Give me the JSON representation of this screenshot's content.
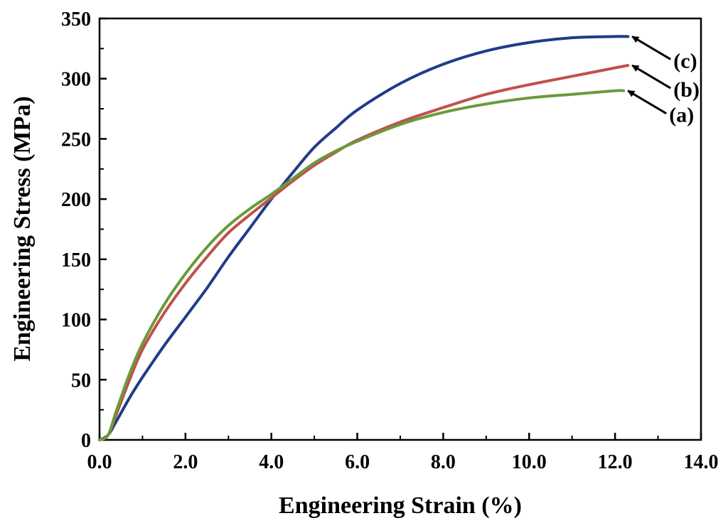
{
  "chart_data": {
    "type": "line",
    "xlabel": "Engineering Strain (%)",
    "ylabel": "Engineering Stress (MPa)",
    "xlim": [
      0,
      14
    ],
    "ylim": [
      0,
      350
    ],
    "x_ticks": [
      "0.0",
      "2.0",
      "4.0",
      "6.0",
      "8.0",
      "10.0",
      "12.0",
      "14.0"
    ],
    "y_ticks": [
      "0",
      "50",
      "100",
      "150",
      "200",
      "250",
      "300",
      "350"
    ],
    "grid": false,
    "legend": "none",
    "series": [
      {
        "name": "(a)",
        "color": "#6a9a3a",
        "points": [
          [
            0,
            0
          ],
          [
            0.2,
            4
          ],
          [
            0.4,
            25
          ],
          [
            0.7,
            55
          ],
          [
            1.0,
            80
          ],
          [
            1.5,
            112
          ],
          [
            2.0,
            138
          ],
          [
            2.5,
            160
          ],
          [
            3.0,
            178
          ],
          [
            3.5,
            192
          ],
          [
            4.0,
            204
          ],
          [
            4.5,
            217
          ],
          [
            5.0,
            230
          ],
          [
            5.5,
            240
          ],
          [
            6.0,
            248
          ],
          [
            7.0,
            262
          ],
          [
            8.0,
            272
          ],
          [
            9.0,
            279
          ],
          [
            10.0,
            284
          ],
          [
            11.0,
            287
          ],
          [
            12.0,
            290
          ],
          [
            12.2,
            290
          ]
        ]
      },
      {
        "name": "(b)",
        "color": "#c0504d",
        "points": [
          [
            0,
            0
          ],
          [
            0.2,
            4
          ],
          [
            0.4,
            22
          ],
          [
            0.7,
            50
          ],
          [
            1.0,
            75
          ],
          [
            1.5,
            105
          ],
          [
            2.0,
            130
          ],
          [
            2.5,
            152
          ],
          [
            3.0,
            172
          ],
          [
            3.5,
            187
          ],
          [
            4.0,
            201
          ],
          [
            4.5,
            215
          ],
          [
            5.0,
            228
          ],
          [
            5.5,
            239
          ],
          [
            6.0,
            249
          ],
          [
            7.0,
            264
          ],
          [
            8.0,
            276
          ],
          [
            9.0,
            287
          ],
          [
            10.0,
            295
          ],
          [
            11.0,
            302
          ],
          [
            12.0,
            309
          ],
          [
            12.3,
            311
          ]
        ]
      },
      {
        "name": "(c)",
        "color": "#1f3c88",
        "points": [
          [
            0,
            0
          ],
          [
            0.2,
            4
          ],
          [
            0.4,
            16
          ],
          [
            0.7,
            35
          ],
          [
            1.0,
            52
          ],
          [
            1.5,
            78
          ],
          [
            2.0,
            102
          ],
          [
            2.5,
            126
          ],
          [
            3.0,
            152
          ],
          [
            3.5,
            176
          ],
          [
            4.0,
            200
          ],
          [
            4.5,
            222
          ],
          [
            5.0,
            243
          ],
          [
            5.5,
            259
          ],
          [
            6.0,
            274
          ],
          [
            7.0,
            296
          ],
          [
            8.0,
            312
          ],
          [
            9.0,
            323
          ],
          [
            10.0,
            330
          ],
          [
            11.0,
            334
          ],
          [
            12.0,
            335
          ],
          [
            12.3,
            335
          ]
        ]
      }
    ],
    "annotations": [
      {
        "label": "(c)",
        "series": "(c)",
        "at": [
          12.3,
          335
        ]
      },
      {
        "label": "(b)",
        "series": "(b)",
        "at": [
          12.3,
          311
        ]
      },
      {
        "label": "(a)",
        "series": "(a)",
        "at": [
          12.2,
          290
        ]
      }
    ]
  }
}
